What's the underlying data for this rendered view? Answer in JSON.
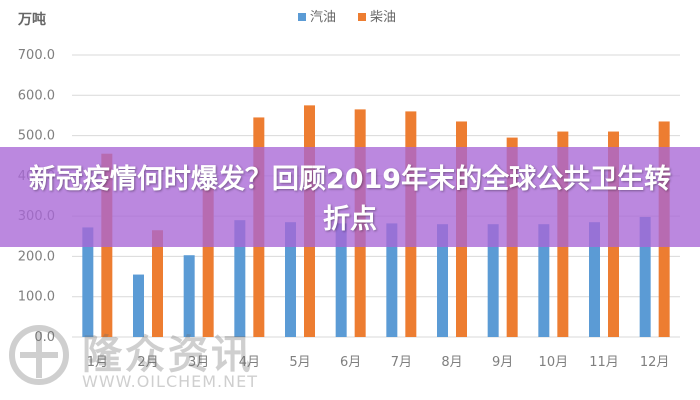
{
  "chart_data": {
    "type": "bar",
    "unit_label": "万吨",
    "categories": [
      "1月",
      "2月",
      "3月",
      "4月",
      "5月",
      "6月",
      "7月",
      "8月",
      "9月",
      "10月",
      "11月",
      "12月"
    ],
    "series": [
      {
        "name": "汽油",
        "color": "#5b9bd5",
        "values": [
          272,
          155,
          203,
          290,
          285,
          282,
          282,
          280,
          280,
          280,
          285,
          298
        ]
      },
      {
        "name": "柴油",
        "color": "#ed7d31",
        "values": [
          455,
          265,
          370,
          545,
          575,
          565,
          560,
          535,
          495,
          510,
          510,
          535
        ]
      }
    ],
    "ylim": [
      0,
      700
    ],
    "yticks": [
      "0.0",
      "100.0",
      "200.0",
      "300.0",
      "400.0",
      "500.0",
      "600.0",
      "700.0"
    ],
    "grid": true,
    "legend_position": "top-center"
  },
  "overlay": {
    "title": "新冠疫情何时爆发？回顾2019年末的全球公共卫生转折点"
  },
  "watermark": {
    "cn_text": "隆众资讯",
    "url": "WWW.OILCHEM.NET"
  }
}
